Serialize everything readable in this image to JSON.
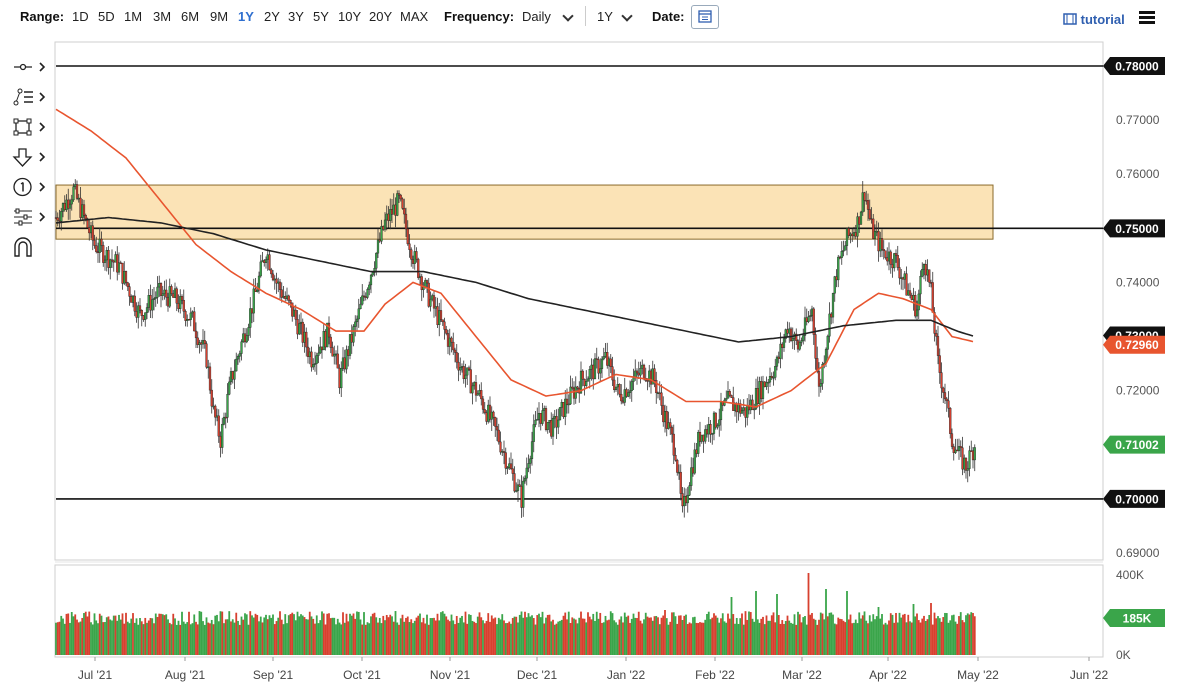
{
  "toolbar": {
    "range_label": "Range:",
    "ranges": [
      "1D",
      "5D",
      "1M",
      "3M",
      "6M",
      "9M",
      "1Y",
      "2Y",
      "3Y",
      "5Y",
      "10Y",
      "20Y",
      "MAX"
    ],
    "active_range": "1Y",
    "frequency_label": "Frequency:",
    "frequency_value": "Daily",
    "period_value": "1Y",
    "date_label": "Date:",
    "tutorial_label": "tutorial",
    "tutorial_icon": "film-icon",
    "menu_icon": "hamburger-icon"
  },
  "sidebar": {
    "tools": [
      {
        "name": "crosshair-tool",
        "icon": "crosshair-icon"
      },
      {
        "name": "line-tools",
        "icon": "trend-lines-icon"
      },
      {
        "name": "shape-tools",
        "icon": "rectangle-icon"
      },
      {
        "name": "annotation-tools",
        "icon": "arrow-down-icon"
      },
      {
        "name": "event-tools",
        "icon": "numbered-circle-icon"
      },
      {
        "name": "indicator-tools",
        "icon": "sliders-icon"
      },
      {
        "name": "magnet-tool",
        "icon": "magnet-icon"
      }
    ]
  },
  "colors": {
    "up": "#3aa54a",
    "down": "#d7402f",
    "ma_fast": "#e8552f",
    "ma_slow": "#222222",
    "zone_fill": "#fbe3b6",
    "zone_stroke": "#8a6a2a",
    "vol_tag": "#3aa54a",
    "price_tag": "#3aa54a",
    "ma_tag": "#e8552f"
  },
  "chart_data": {
    "type": "candlestick",
    "price_axis": {
      "min": 0.69,
      "max": 0.78,
      "ticks": [
        "0.78000",
        "0.77000",
        "0.76000",
        "0.75000",
        "0.74000",
        "0.73000",
        "0.72000",
        "0.71000",
        "0.70000",
        "0.69000"
      ]
    },
    "x_ticks": [
      "Jul '21",
      "Aug '21",
      "Sep '21",
      "Oct '21",
      "Nov '21",
      "Dec '21",
      "Jan '22",
      "Feb '22",
      "Mar '22",
      "Apr '22",
      "May '22",
      "Jun '22"
    ],
    "horizontal_lines": [
      0.78,
      0.75,
      0.7
    ],
    "zone": {
      "low": 0.748,
      "high": 0.758
    },
    "tags": [
      {
        "label": "0.78000",
        "value": 0.78,
        "style": "dark"
      },
      {
        "label": "0.75000",
        "value": 0.75,
        "style": "dark"
      },
      {
        "label": "0.73000",
        "value": 0.7302,
        "style": "dark"
      },
      {
        "label": "0.72960",
        "value": 0.7296,
        "style": "ma"
      },
      {
        "label": "0.71002",
        "value": 0.71002,
        "style": "price"
      },
      {
        "label": "0.70000",
        "value": 0.7,
        "style": "dark"
      }
    ],
    "close_path": [
      [
        0,
        0.752
      ],
      [
        10,
        0.757
      ],
      [
        22,
        0.747
      ],
      [
        36,
        0.743
      ],
      [
        48,
        0.734
      ],
      [
        58,
        0.738
      ],
      [
        68,
        0.737
      ],
      [
        78,
        0.733
      ],
      [
        86,
        0.726
      ],
      [
        90,
        0.716
      ],
      [
        94,
        0.711
      ],
      [
        100,
        0.722
      ],
      [
        108,
        0.731
      ],
      [
        114,
        0.738
      ],
      [
        120,
        0.746
      ],
      [
        126,
        0.74
      ],
      [
        136,
        0.734
      ],
      [
        146,
        0.726
      ],
      [
        156,
        0.731
      ],
      [
        162,
        0.722
      ],
      [
        172,
        0.733
      ],
      [
        180,
        0.742
      ],
      [
        188,
        0.751
      ],
      [
        196,
        0.755
      ],
      [
        204,
        0.745
      ],
      [
        212,
        0.738
      ],
      [
        222,
        0.731
      ],
      [
        232,
        0.724
      ],
      [
        242,
        0.719
      ],
      [
        252,
        0.712
      ],
      [
        260,
        0.705
      ],
      [
        266,
        0.7
      ],
      [
        270,
        0.708
      ],
      [
        276,
        0.716
      ],
      [
        284,
        0.713
      ],
      [
        292,
        0.718
      ],
      [
        300,
        0.722
      ],
      [
        308,
        0.724
      ],
      [
        314,
        0.726
      ],
      [
        322,
        0.719
      ],
      [
        330,
        0.722
      ],
      [
        336,
        0.724
      ],
      [
        342,
        0.722
      ],
      [
        348,
        0.715
      ],
      [
        354,
        0.709
      ],
      [
        358,
        0.697
      ],
      [
        362,
        0.704
      ],
      [
        368,
        0.712
      ],
      [
        376,
        0.714
      ],
      [
        384,
        0.718
      ],
      [
        394,
        0.716
      ],
      [
        402,
        0.72
      ],
      [
        412,
        0.725
      ],
      [
        418,
        0.732
      ],
      [
        424,
        0.728
      ],
      [
        432,
        0.735
      ],
      [
        436,
        0.72
      ],
      [
        440,
        0.729
      ],
      [
        446,
        0.742
      ],
      [
        452,
        0.748
      ],
      [
        458,
        0.751
      ],
      [
        462,
        0.757
      ],
      [
        466,
        0.75
      ],
      [
        472,
        0.746
      ],
      [
        480,
        0.744
      ],
      [
        486,
        0.739
      ],
      [
        492,
        0.735
      ],
      [
        496,
        0.745
      ],
      [
        500,
        0.738
      ],
      [
        504,
        0.725
      ],
      [
        508,
        0.719
      ],
      [
        512,
        0.711
      ],
      [
        516,
        0.708
      ],
      [
        520,
        0.706
      ],
      [
        525,
        0.71
      ]
    ],
    "ma_fast_path": [
      [
        0,
        0.772
      ],
      [
        20,
        0.768
      ],
      [
        40,
        0.763
      ],
      [
        60,
        0.755
      ],
      [
        80,
        0.747
      ],
      [
        100,
        0.742
      ],
      [
        120,
        0.738
      ],
      [
        140,
        0.735
      ],
      [
        160,
        0.731
      ],
      [
        176,
        0.731
      ],
      [
        188,
        0.736
      ],
      [
        204,
        0.74
      ],
      [
        220,
        0.738
      ],
      [
        240,
        0.73
      ],
      [
        260,
        0.722
      ],
      [
        280,
        0.719
      ],
      [
        300,
        0.72
      ],
      [
        320,
        0.723
      ],
      [
        340,
        0.722
      ],
      [
        360,
        0.718
      ],
      [
        380,
        0.718
      ],
      [
        400,
        0.717
      ],
      [
        420,
        0.72
      ],
      [
        440,
        0.725
      ],
      [
        456,
        0.735
      ],
      [
        470,
        0.738
      ],
      [
        484,
        0.737
      ],
      [
        500,
        0.735
      ],
      [
        512,
        0.73
      ],
      [
        525,
        0.729
      ]
    ],
    "ma_slow_path": [
      [
        0,
        0.751
      ],
      [
        30,
        0.752
      ],
      [
        60,
        0.751
      ],
      [
        90,
        0.749
      ],
      [
        120,
        0.746
      ],
      [
        150,
        0.744
      ],
      [
        180,
        0.742
      ],
      [
        210,
        0.742
      ],
      [
        240,
        0.74
      ],
      [
        270,
        0.737
      ],
      [
        300,
        0.735
      ],
      [
        330,
        0.733
      ],
      [
        360,
        0.731
      ],
      [
        390,
        0.729
      ],
      [
        420,
        0.73
      ],
      [
        450,
        0.732
      ],
      [
        480,
        0.733
      ],
      [
        500,
        0.733
      ],
      [
        515,
        0.731
      ],
      [
        525,
        0.73
      ]
    ],
    "volume": {
      "axis_ticks": [
        "400K",
        "0K"
      ],
      "max": 400,
      "last_label": "185K",
      "base": 185,
      "spikes": [
        [
          348,
          225
        ],
        [
          372,
          205
        ],
        [
          386,
          290
        ],
        [
          400,
          320
        ],
        [
          412,
          305
        ],
        [
          430,
          410
        ],
        [
          440,
          330
        ],
        [
          452,
          320
        ],
        [
          470,
          240
        ],
        [
          490,
          255
        ],
        [
          500,
          260
        ]
      ]
    }
  }
}
